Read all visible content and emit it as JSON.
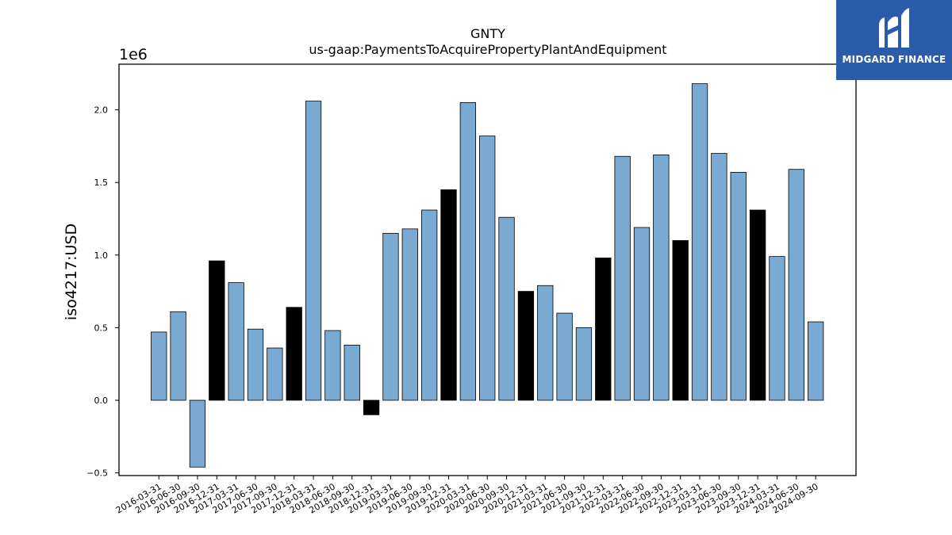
{
  "chart_data": {
    "type": "bar",
    "title": "GNTY",
    "subtitle": "us-gaap:PaymentsToAcquirePropertyPlantAndEquipment",
    "ylabel": "iso4217:USD",
    "xlabel": "",
    "offset_label": "1e6",
    "ylim": [
      -0.52,
      2.3
    ],
    "yticks": [
      -0.5,
      0.0,
      0.5,
      1.0,
      1.5,
      2.0
    ],
    "ytick_labels": [
      "−0.5",
      "0.0",
      "0.5",
      "1.0",
      "1.5",
      "2.0"
    ],
    "scale": 1000000,
    "grid": false,
    "colors": {
      "quarter": "#7aaad2",
      "year_end": "#000000",
      "edge": "#000000"
    },
    "categories": [
      "2016-03-31",
      "2016-06-30",
      "2016-09-30",
      "2016-12-31",
      "2017-03-31",
      "2017-06-30",
      "2017-09-30",
      "2017-12-31",
      "2018-03-31",
      "2018-06-30",
      "2018-09-30",
      "2018-12-31",
      "2019-03-31",
      "2019-06-30",
      "2019-09-30",
      "2019-12-31",
      "2020-03-31",
      "2020-06-30",
      "2020-09-30",
      "2020-12-31",
      "2021-03-31",
      "2021-06-30",
      "2021-09-30",
      "2021-12-31",
      "2022-03-31",
      "2022-06-30",
      "2022-09-30",
      "2022-12-31",
      "2023-03-31",
      "2023-06-30",
      "2023-09-30",
      "2023-12-31",
      "2024-03-31",
      "2024-06-30",
      "2024-09-30"
    ],
    "values": [
      0.47,
      0.61,
      -0.46,
      0.96,
      0.81,
      0.49,
      0.36,
      0.64,
      2.06,
      0.48,
      0.38,
      -0.1,
      1.15,
      1.18,
      1.31,
      1.45,
      2.05,
      1.82,
      1.26,
      0.75,
      0.79,
      0.6,
      0.5,
      0.98,
      1.68,
      1.19,
      1.69,
      1.1,
      2.18,
      1.7,
      1.57,
      1.31,
      0.99,
      1.59,
      0.54
    ],
    "year_end_flags": [
      false,
      false,
      false,
      true,
      false,
      false,
      false,
      true,
      false,
      false,
      false,
      true,
      false,
      false,
      false,
      true,
      false,
      false,
      false,
      true,
      false,
      false,
      false,
      true,
      false,
      false,
      false,
      true,
      false,
      false,
      false,
      true,
      false,
      false,
      false
    ]
  },
  "logo": {
    "text": "MIDGARD FINANCE",
    "background": "#2a5caa"
  }
}
